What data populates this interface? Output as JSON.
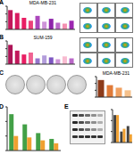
{
  "chart_data": [
    {
      "panel": "A",
      "type": "bar",
      "title": "MDA-MB-231",
      "categories": [
        null,
        null,
        null,
        null,
        null,
        null,
        null,
        null,
        null,
        null
      ],
      "values": [
        100,
        85,
        60,
        45,
        70,
        40,
        55,
        35,
        30,
        45
      ],
      "colors": [
        "#c2185b",
        "#d81b60",
        "#e91e63",
        "#ec407a",
        "#ab47bc",
        "#ce93d8",
        "#8e24aa",
        "#ba68c8",
        "#f48fb1",
        "#9c27b0"
      ],
      "ylim": [
        0,
        120
      ],
      "yticks": [
        0,
        40,
        80,
        120
      ],
      "tick_labels": false
    },
    {
      "panel": "B",
      "type": "bar",
      "title": "SUM-159",
      "categories": [
        null,
        null,
        null,
        null,
        null,
        null,
        null,
        null,
        null,
        null
      ],
      "values": [
        100,
        70,
        50,
        60,
        30,
        45,
        35,
        25,
        40,
        30
      ],
      "colors": [
        "#ad1457",
        "#c2185b",
        "#e91e63",
        "#f06292",
        "#9575cd",
        "#b39ddb",
        "#7e57c2",
        "#ce93d8",
        "#f8bbd0",
        "#ba68c8"
      ],
      "ylim": [
        0,
        120
      ],
      "yticks": [
        0,
        40,
        80,
        120
      ],
      "tick_labels": false
    },
    {
      "panel": "C",
      "type": "bar",
      "title": "MDA-MB-231",
      "categories": [
        null,
        null,
        null,
        null
      ],
      "values": [
        100,
        70,
        55,
        40
      ],
      "colors": [
        "#8d3b1a",
        "#e07b39",
        "#f0a060",
        "#f5c08a"
      ],
      "ylim": [
        0,
        120
      ],
      "yticks": [
        0,
        40,
        80,
        120
      ],
      "tick_labels": false
    },
    {
      "panel": "D",
      "type": "bar",
      "categories": [
        null,
        null,
        null,
        null
      ],
      "series": [
        {
          "color": "#43a047",
          "values": [
            2.5,
            1.8,
            1.2,
            0.8
          ]
        },
        {
          "color": "#f0a030",
          "values": [
            1.0,
            0.9,
            0.7,
            0.5
          ]
        }
      ],
      "ylim": [
        0,
        3
      ],
      "yticks": [
        0,
        1,
        2,
        3
      ],
      "tick_labels": false
    },
    {
      "panel": "E",
      "type": "bar",
      "categories": [
        null,
        null,
        null
      ],
      "series": [
        {
          "color": "#424242",
          "values": [
            1,
            0.4,
            0.6
          ]
        },
        {
          "color": "#f0a030",
          "values": [
            1,
            0.5,
            0.3
          ]
        }
      ],
      "ylim": [
        0,
        1.2
      ],
      "yticks": [
        0,
        0.4,
        0.8,
        1.2
      ],
      "tick_labels": false
    }
  ]
}
